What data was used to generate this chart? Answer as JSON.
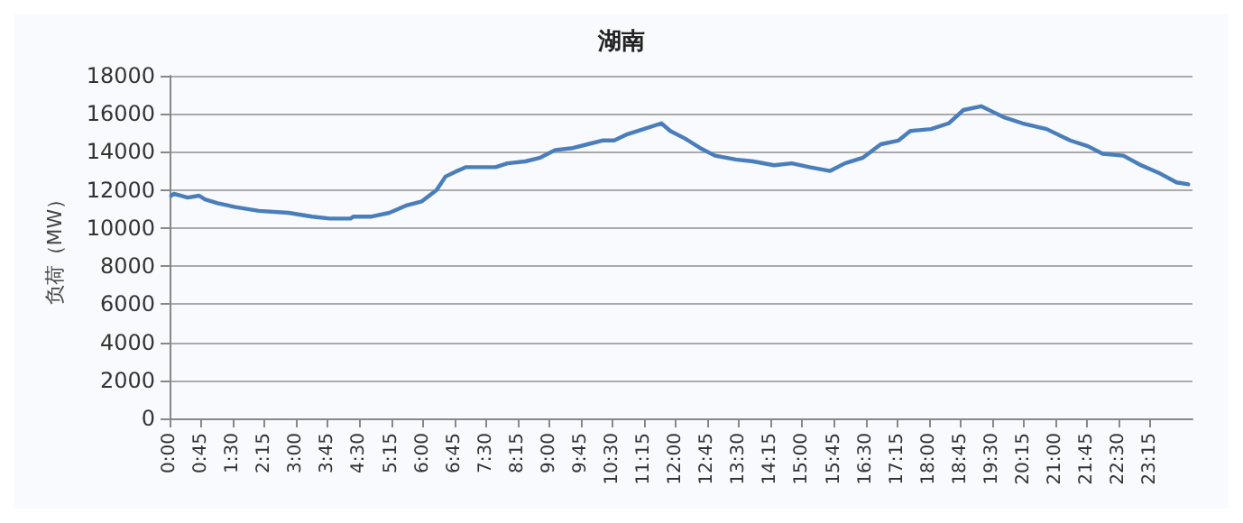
{
  "chart_data": {
    "type": "line",
    "title": "湖南",
    "ylabel": "负荷（MW）",
    "xlim": [
      0,
      24.25
    ],
    "xticks": [
      {
        "value": 0,
        "label": "0:00"
      },
      {
        "value": 0.75,
        "label": "0:45"
      },
      {
        "value": 1.5,
        "label": "1:30"
      },
      {
        "value": 2.25,
        "label": "2:15"
      },
      {
        "value": 3,
        "label": "3:00"
      },
      {
        "value": 3.75,
        "label": "3:45"
      },
      {
        "value": 4.5,
        "label": "4:30"
      },
      {
        "value": 5.25,
        "label": "5:15"
      },
      {
        "value": 6,
        "label": "6:00"
      },
      {
        "value": 6.75,
        "label": "6:45"
      },
      {
        "value": 7.5,
        "label": "7:30"
      },
      {
        "value": 8.25,
        "label": "8:15"
      },
      {
        "value": 9,
        "label": "9:00"
      },
      {
        "value": 9.75,
        "label": "9:45"
      },
      {
        "value": 10.5,
        "label": "10:30"
      },
      {
        "value": 11.25,
        "label": "11:15"
      },
      {
        "value": 12,
        "label": "12:00"
      },
      {
        "value": 12.75,
        "label": "12:45"
      },
      {
        "value": 13.5,
        "label": "13:30"
      },
      {
        "value": 14.25,
        "label": "14:15"
      },
      {
        "value": 15,
        "label": "15:00"
      },
      {
        "value": 15.75,
        "label": "15:45"
      },
      {
        "value": 16.5,
        "label": "16:30"
      },
      {
        "value": 17.25,
        "label": "17:15"
      },
      {
        "value": 18,
        "label": "18:00"
      },
      {
        "value": 18.75,
        "label": "18:45"
      },
      {
        "value": 19.5,
        "label": "19:30"
      },
      {
        "value": 20.25,
        "label": "20:15"
      },
      {
        "value": 21,
        "label": "21:00"
      },
      {
        "value": 21.75,
        "label": "21:45"
      },
      {
        "value": 22.5,
        "label": "22:30"
      },
      {
        "value": 23.25,
        "label": "23:15"
      }
    ],
    "ylim": [
      0,
      18000
    ],
    "yticks": [
      0,
      2000,
      4000,
      6000,
      8000,
      10000,
      12000,
      14000,
      16000,
      18000
    ],
    "grid": "y",
    "marker": "none",
    "line_style": "solid",
    "series": [
      {
        "color": "#4a7ebb",
        "x": [
          0.04,
          0.1,
          0.43,
          0.7,
          0.84,
          1.14,
          1.56,
          2.12,
          2.82,
          3.38,
          3.8,
          4.29,
          4.36,
          4.79,
          5.21,
          5.63,
          5.98,
          6.33,
          6.54,
          6.82,
          7.03,
          7.3,
          7.73,
          8.01,
          8.43,
          8.79,
          9.14,
          9.56,
          9.91,
          10.26,
          10.54,
          10.82,
          11.24,
          11.66,
          11.87,
          12.22,
          12.58,
          12.93,
          13.42,
          13.84,
          14.33,
          14.75,
          15.17,
          15.66,
          16.01,
          16.44,
          16.86,
          17.28,
          17.56,
          18.05,
          18.47,
          18.82,
          19.24,
          19.52,
          19.8,
          20.22,
          20.79,
          21.35,
          21.77,
          22.12,
          22.61,
          23.03,
          23.45,
          23.87,
          24.15
        ],
        "values": [
          11700,
          11800,
          11600,
          11700,
          11500,
          11300,
          11100,
          10900,
          10800,
          10600,
          10500,
          10500,
          10600,
          10600,
          10800,
          11200,
          11400,
          12000,
          12700,
          13000,
          13200,
          13200,
          13200,
          13400,
          13500,
          13700,
          14100,
          14200,
          14400,
          14600,
          14600,
          14900,
          15200,
          15500,
          15100,
          14700,
          14200,
          13800,
          13600,
          13500,
          13300,
          13400,
          13200,
          13000,
          13400,
          13700,
          14400,
          14600,
          15100,
          15200,
          15500,
          16200,
          16400,
          16100,
          15800,
          15500,
          15200,
          14600,
          14300,
          13900,
          13800,
          13300,
          12900,
          12400,
          12300
        ]
      }
    ]
  }
}
